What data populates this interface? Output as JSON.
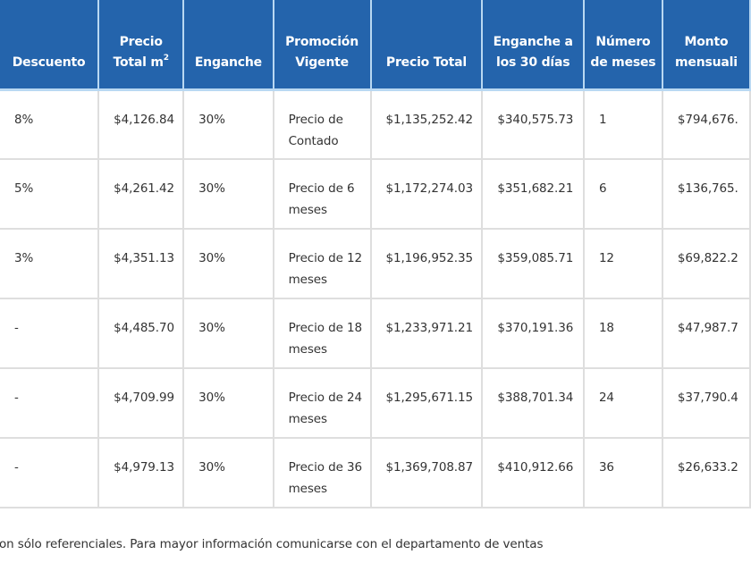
{
  "table": {
    "headers": [
      {
        "key": "descuento",
        "label": "Descuento"
      },
      {
        "key": "precio_m2",
        "label": "Precio Total m",
        "sup": "2"
      },
      {
        "key": "enganche",
        "label": "Enganche"
      },
      {
        "key": "promocion",
        "label": "Promoción Vigente"
      },
      {
        "key": "precio_total",
        "label": "Precio Total"
      },
      {
        "key": "enganche_30",
        "label": "Enganche a los 30 días"
      },
      {
        "key": "num_meses",
        "label": "Número de meses"
      },
      {
        "key": "monto",
        "label": "Monto mensuali"
      }
    ],
    "rows": [
      {
        "descuento": "8%",
        "precio_m2": "$4,126.84",
        "enganche": "30%",
        "promocion": "Precio de Contado",
        "precio_total": "$1,135,252.42",
        "enganche_30": "$340,575.73",
        "num_meses": "1",
        "monto": "$794,676."
      },
      {
        "descuento": "5%",
        "precio_m2": "$4,261.42",
        "enganche": "30%",
        "promocion": "Precio de 6 meses",
        "precio_total": "$1,172,274.03",
        "enganche_30": "$351,682.21",
        "num_meses": "6",
        "monto": "$136,765."
      },
      {
        "descuento": "3%",
        "precio_m2": "$4,351.13",
        "enganche": "30%",
        "promocion": "Precio de 12 meses",
        "precio_total": "$1,196,952.35",
        "enganche_30": "$359,085.71",
        "num_meses": "12",
        "monto": "$69,822.2"
      },
      {
        "descuento": "-",
        "precio_m2": "$4,485.70",
        "enganche": "30%",
        "promocion": "Precio de 18 meses",
        "precio_total": "$1,233,971.21",
        "enganche_30": "$370,191.36",
        "num_meses": "18",
        "monto": "$47,987.7"
      },
      {
        "descuento": "-",
        "precio_m2": "$4,709.99",
        "enganche": "30%",
        "promocion": "Precio de 24 meses",
        "precio_total": "$1,295,671.15",
        "enganche_30": "$388,701.34",
        "num_meses": "24",
        "monto": "$37,790.4"
      },
      {
        "descuento": "-",
        "precio_m2": "$4,979.13",
        "enganche": "30%",
        "promocion": "Precio de 36 meses",
        "precio_total": "$1,369,708.87",
        "enganche_30": "$410,912.66",
        "num_meses": "36",
        "monto": "$26,633.2"
      }
    ]
  },
  "footer_note": "on sólo referenciales. Para mayor información comunicarse con el departamento de ventas",
  "colors": {
    "header_bg": "#2464ac",
    "header_text": "#ffffff",
    "border": "#dedede"
  }
}
